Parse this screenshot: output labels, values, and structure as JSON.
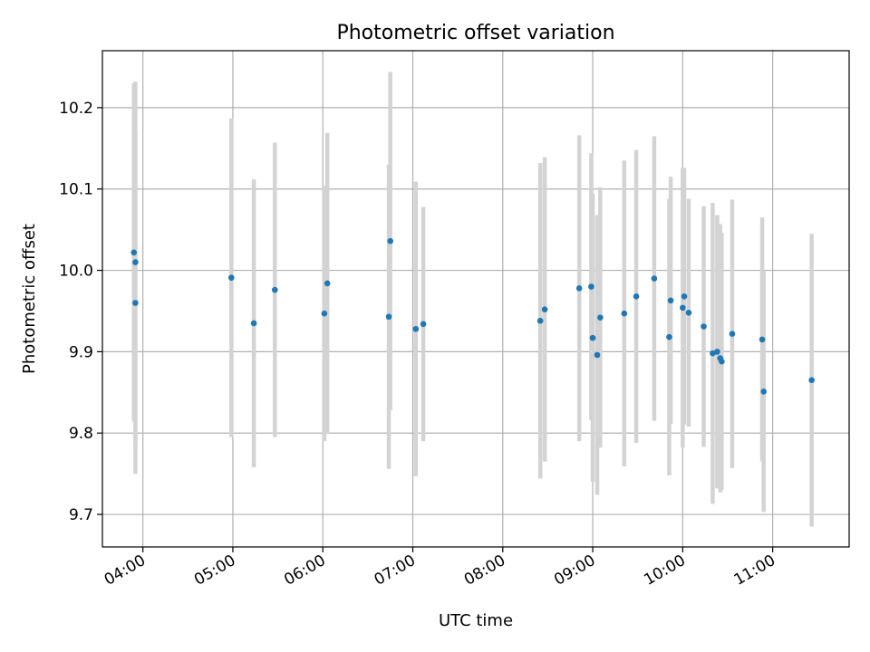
{
  "chart_data": {
    "type": "scatter",
    "title": "Photometric offset variation",
    "xlabel": "UTC time",
    "ylabel": "Photometric offset",
    "xlim": [
      "03:33",
      "11:51"
    ],
    "ylim": [
      9.66,
      10.27
    ],
    "x_ticks": [
      "04:00",
      "05:00",
      "06:00",
      "07:00",
      "08:00",
      "09:00",
      "10:00",
      "11:00"
    ],
    "y_ticks": [
      9.7,
      9.8,
      9.9,
      10.0,
      10.1,
      10.2
    ],
    "y_tick_labels": [
      "9.7",
      "9.8",
      "9.9",
      "10.0",
      "10.1",
      "10.2"
    ],
    "grid": true,
    "point_color": "#1f77b4",
    "errorbar_color": "#d3d3d3",
    "points": [
      {
        "x": "03:54",
        "y": 10.022,
        "err": 0.208
      },
      {
        "x": "03:55",
        "y": 10.01,
        "err": 0.222
      },
      {
        "x": "03:55",
        "y": 9.96,
        "err": 0.21
      },
      {
        "x": "04:59",
        "y": 9.991,
        "err": 0.196
      },
      {
        "x": "05:14",
        "y": 9.935,
        "err": 0.177
      },
      {
        "x": "05:28",
        "y": 9.976,
        "err": 0.181
      },
      {
        "x": "06:01",
        "y": 9.947,
        "err": 0.157
      },
      {
        "x": "06:03",
        "y": 9.984,
        "err": 0.185
      },
      {
        "x": "06:44",
        "y": 9.943,
        "err": 0.187
      },
      {
        "x": "06:45",
        "y": 10.036,
        "err": 0.208
      },
      {
        "x": "07:02",
        "y": 9.928,
        "err": 0.181
      },
      {
        "x": "07:07",
        "y": 9.934,
        "err": 0.144
      },
      {
        "x": "08:25",
        "y": 9.938,
        "err": 0.194
      },
      {
        "x": "08:28",
        "y": 9.952,
        "err": 0.187
      },
      {
        "x": "08:51",
        "y": 9.978,
        "err": 0.188
      },
      {
        "x": "08:59",
        "y": 9.98,
        "err": 0.164
      },
      {
        "x": "09:00",
        "y": 9.917,
        "err": 0.177
      },
      {
        "x": "09:03",
        "y": 9.896,
        "err": 0.172
      },
      {
        "x": "09:05",
        "y": 9.942,
        "err": 0.16
      },
      {
        "x": "09:21",
        "y": 9.947,
        "err": 0.188
      },
      {
        "x": "09:29",
        "y": 9.968,
        "err": 0.18
      },
      {
        "x": "09:41",
        "y": 9.99,
        "err": 0.175
      },
      {
        "x": "09:51",
        "y": 9.918,
        "err": 0.17
      },
      {
        "x": "09:52",
        "y": 9.963,
        "err": 0.152
      },
      {
        "x": "10:00",
        "y": 9.954,
        "err": 0.172
      },
      {
        "x": "10:01",
        "y": 9.968,
        "err": 0.158
      },
      {
        "x": "10:04",
        "y": 9.948,
        "err": 0.14
      },
      {
        "x": "10:14",
        "y": 9.931,
        "err": 0.148
      },
      {
        "x": "10:20",
        "y": 9.898,
        "err": 0.185
      },
      {
        "x": "10:23",
        "y": 9.9,
        "err": 0.168
      },
      {
        "x": "10:25",
        "y": 9.892,
        "err": 0.165
      },
      {
        "x": "10:26",
        "y": 9.888,
        "err": 0.158
      },
      {
        "x": "10:33",
        "y": 9.922,
        "err": 0.165
      },
      {
        "x": "10:53",
        "y": 9.915,
        "err": 0.15
      },
      {
        "x": "10:54",
        "y": 9.851,
        "err": 0.148
      },
      {
        "x": "11:26",
        "y": 9.865,
        "err": 0.18
      }
    ]
  }
}
